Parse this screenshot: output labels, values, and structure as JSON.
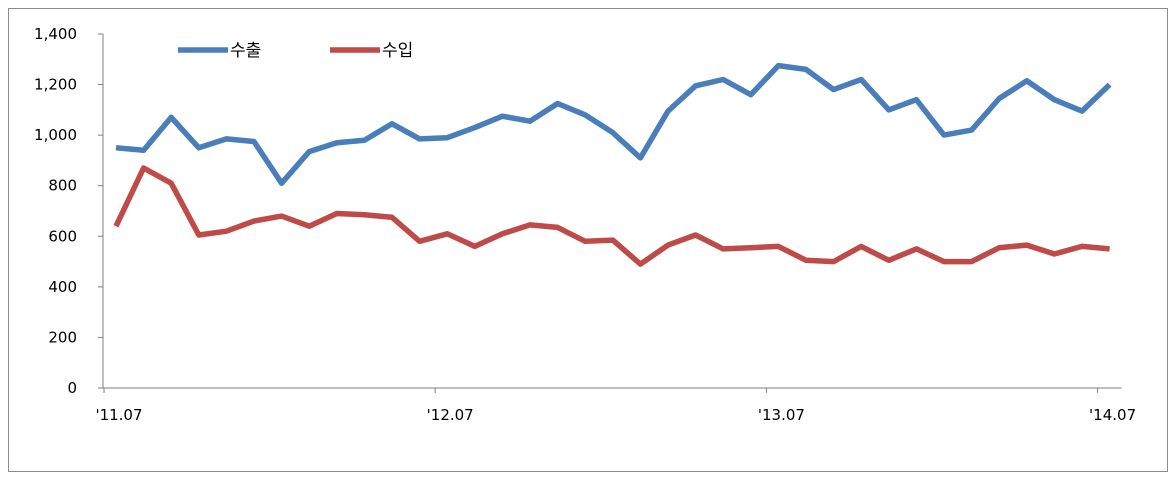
{
  "chart_data": {
    "type": "line",
    "title": "",
    "xlabel": "",
    "ylabel": "",
    "ylim": [
      0,
      1400
    ],
    "yticks": [
      "0",
      "200",
      "400",
      "600",
      "800",
      "1,000",
      "1,200",
      "1,400"
    ],
    "ytick_values": [
      0,
      200,
      400,
      600,
      800,
      1000,
      1200,
      1400
    ],
    "xtick_labels": [
      {
        "label": "'11.07",
        "index": 0
      },
      {
        "label": "'12.07",
        "index": 12
      },
      {
        "label": "'13.07",
        "index": 24
      },
      {
        "label": "'14.07",
        "index": 36
      }
    ],
    "x": [
      "'11.07",
      "'11.08",
      "'11.09",
      "'11.10",
      "'11.11",
      "'11.12",
      "'12.01",
      "'12.02",
      "'12.03",
      "'12.04",
      "'12.05",
      "'12.06",
      "'12.07",
      "'12.08",
      "'12.09",
      "'12.10",
      "'12.11",
      "'12.12",
      "'13.01",
      "'13.02",
      "'13.03",
      "'13.04",
      "'13.05",
      "'13.06",
      "'13.07",
      "'13.08",
      "'13.09",
      "'13.10",
      "'13.11",
      "'13.12",
      "'14.01",
      "'14.02",
      "'14.03",
      "'14.04",
      "'14.05",
      "'14.06",
      "'14.07"
    ],
    "grid": false,
    "legend_position": "top-left",
    "series": [
      {
        "name": "수출",
        "color": "#4a7ebb",
        "values": [
          950,
          940,
          1070,
          950,
          985,
          975,
          810,
          935,
          970,
          980,
          1045,
          985,
          990,
          1030,
          1075,
          1055,
          1125,
          1080,
          1010,
          910,
          1095,
          1195,
          1220,
          1160,
          1275,
          1260,
          1180,
          1220,
          1100,
          1140,
          1000,
          1020,
          1145,
          1215,
          1140,
          1095,
          1200
        ]
      },
      {
        "name": "수입",
        "color": "#be4b48",
        "values": [
          640,
          870,
          810,
          605,
          620,
          660,
          680,
          640,
          690,
          685,
          675,
          580,
          610,
          560,
          610,
          645,
          635,
          580,
          585,
          490,
          565,
          605,
          550,
          555,
          560,
          505,
          500,
          560,
          505,
          550,
          500,
          500,
          555,
          565,
          530,
          560,
          550
        ]
      }
    ]
  }
}
